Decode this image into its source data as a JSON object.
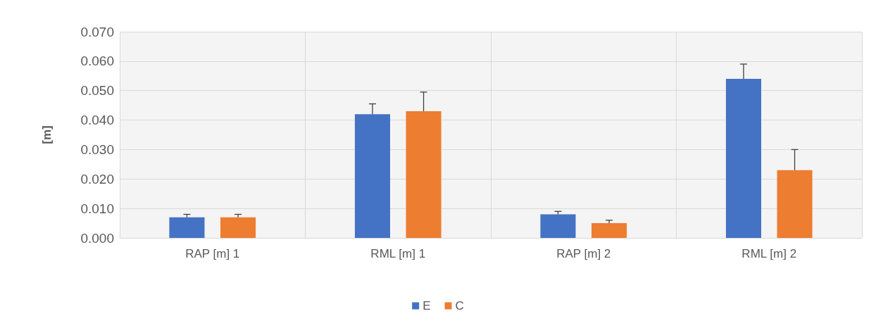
{
  "chart_data": {
    "type": "bar",
    "ylabel": "[m]",
    "categories": [
      "RAP [m] 1",
      "RML [m] 1",
      "RAP [m] 2",
      "RML [m] 2"
    ],
    "series": [
      {
        "name": "E",
        "color": "#4472c4",
        "values": [
          0.007,
          0.042,
          0.008,
          0.054
        ],
        "errors": [
          [
            0.007,
            0.008
          ],
          [
            0.042,
            0.0455
          ],
          [
            0.008,
            0.009
          ],
          [
            0.054,
            0.059
          ]
        ]
      },
      {
        "name": "C",
        "color": "#ed7d31",
        "values": [
          0.007,
          0.043,
          0.005,
          0.023
        ],
        "errors": [
          [
            0.007,
            0.008
          ],
          [
            0.043,
            0.0495
          ],
          [
            0.005,
            0.006
          ],
          [
            0.023,
            0.03
          ]
        ]
      }
    ],
    "ylim": [
      0,
      0.07
    ],
    "yticks": [
      {
        "value": 0,
        "label": "0.000"
      },
      {
        "value": 0.01,
        "label": "0.010"
      },
      {
        "value": 0.02,
        "label": "0.020"
      },
      {
        "value": 0.03,
        "label": "0.030"
      },
      {
        "value": 0.04,
        "label": "0.040"
      },
      {
        "value": 0.05,
        "label": "0.050"
      },
      {
        "value": 0.06,
        "label": "0.060"
      },
      {
        "value": 0.07,
        "label": "0.070"
      }
    ],
    "grid": true,
    "legend": "bottom"
  }
}
